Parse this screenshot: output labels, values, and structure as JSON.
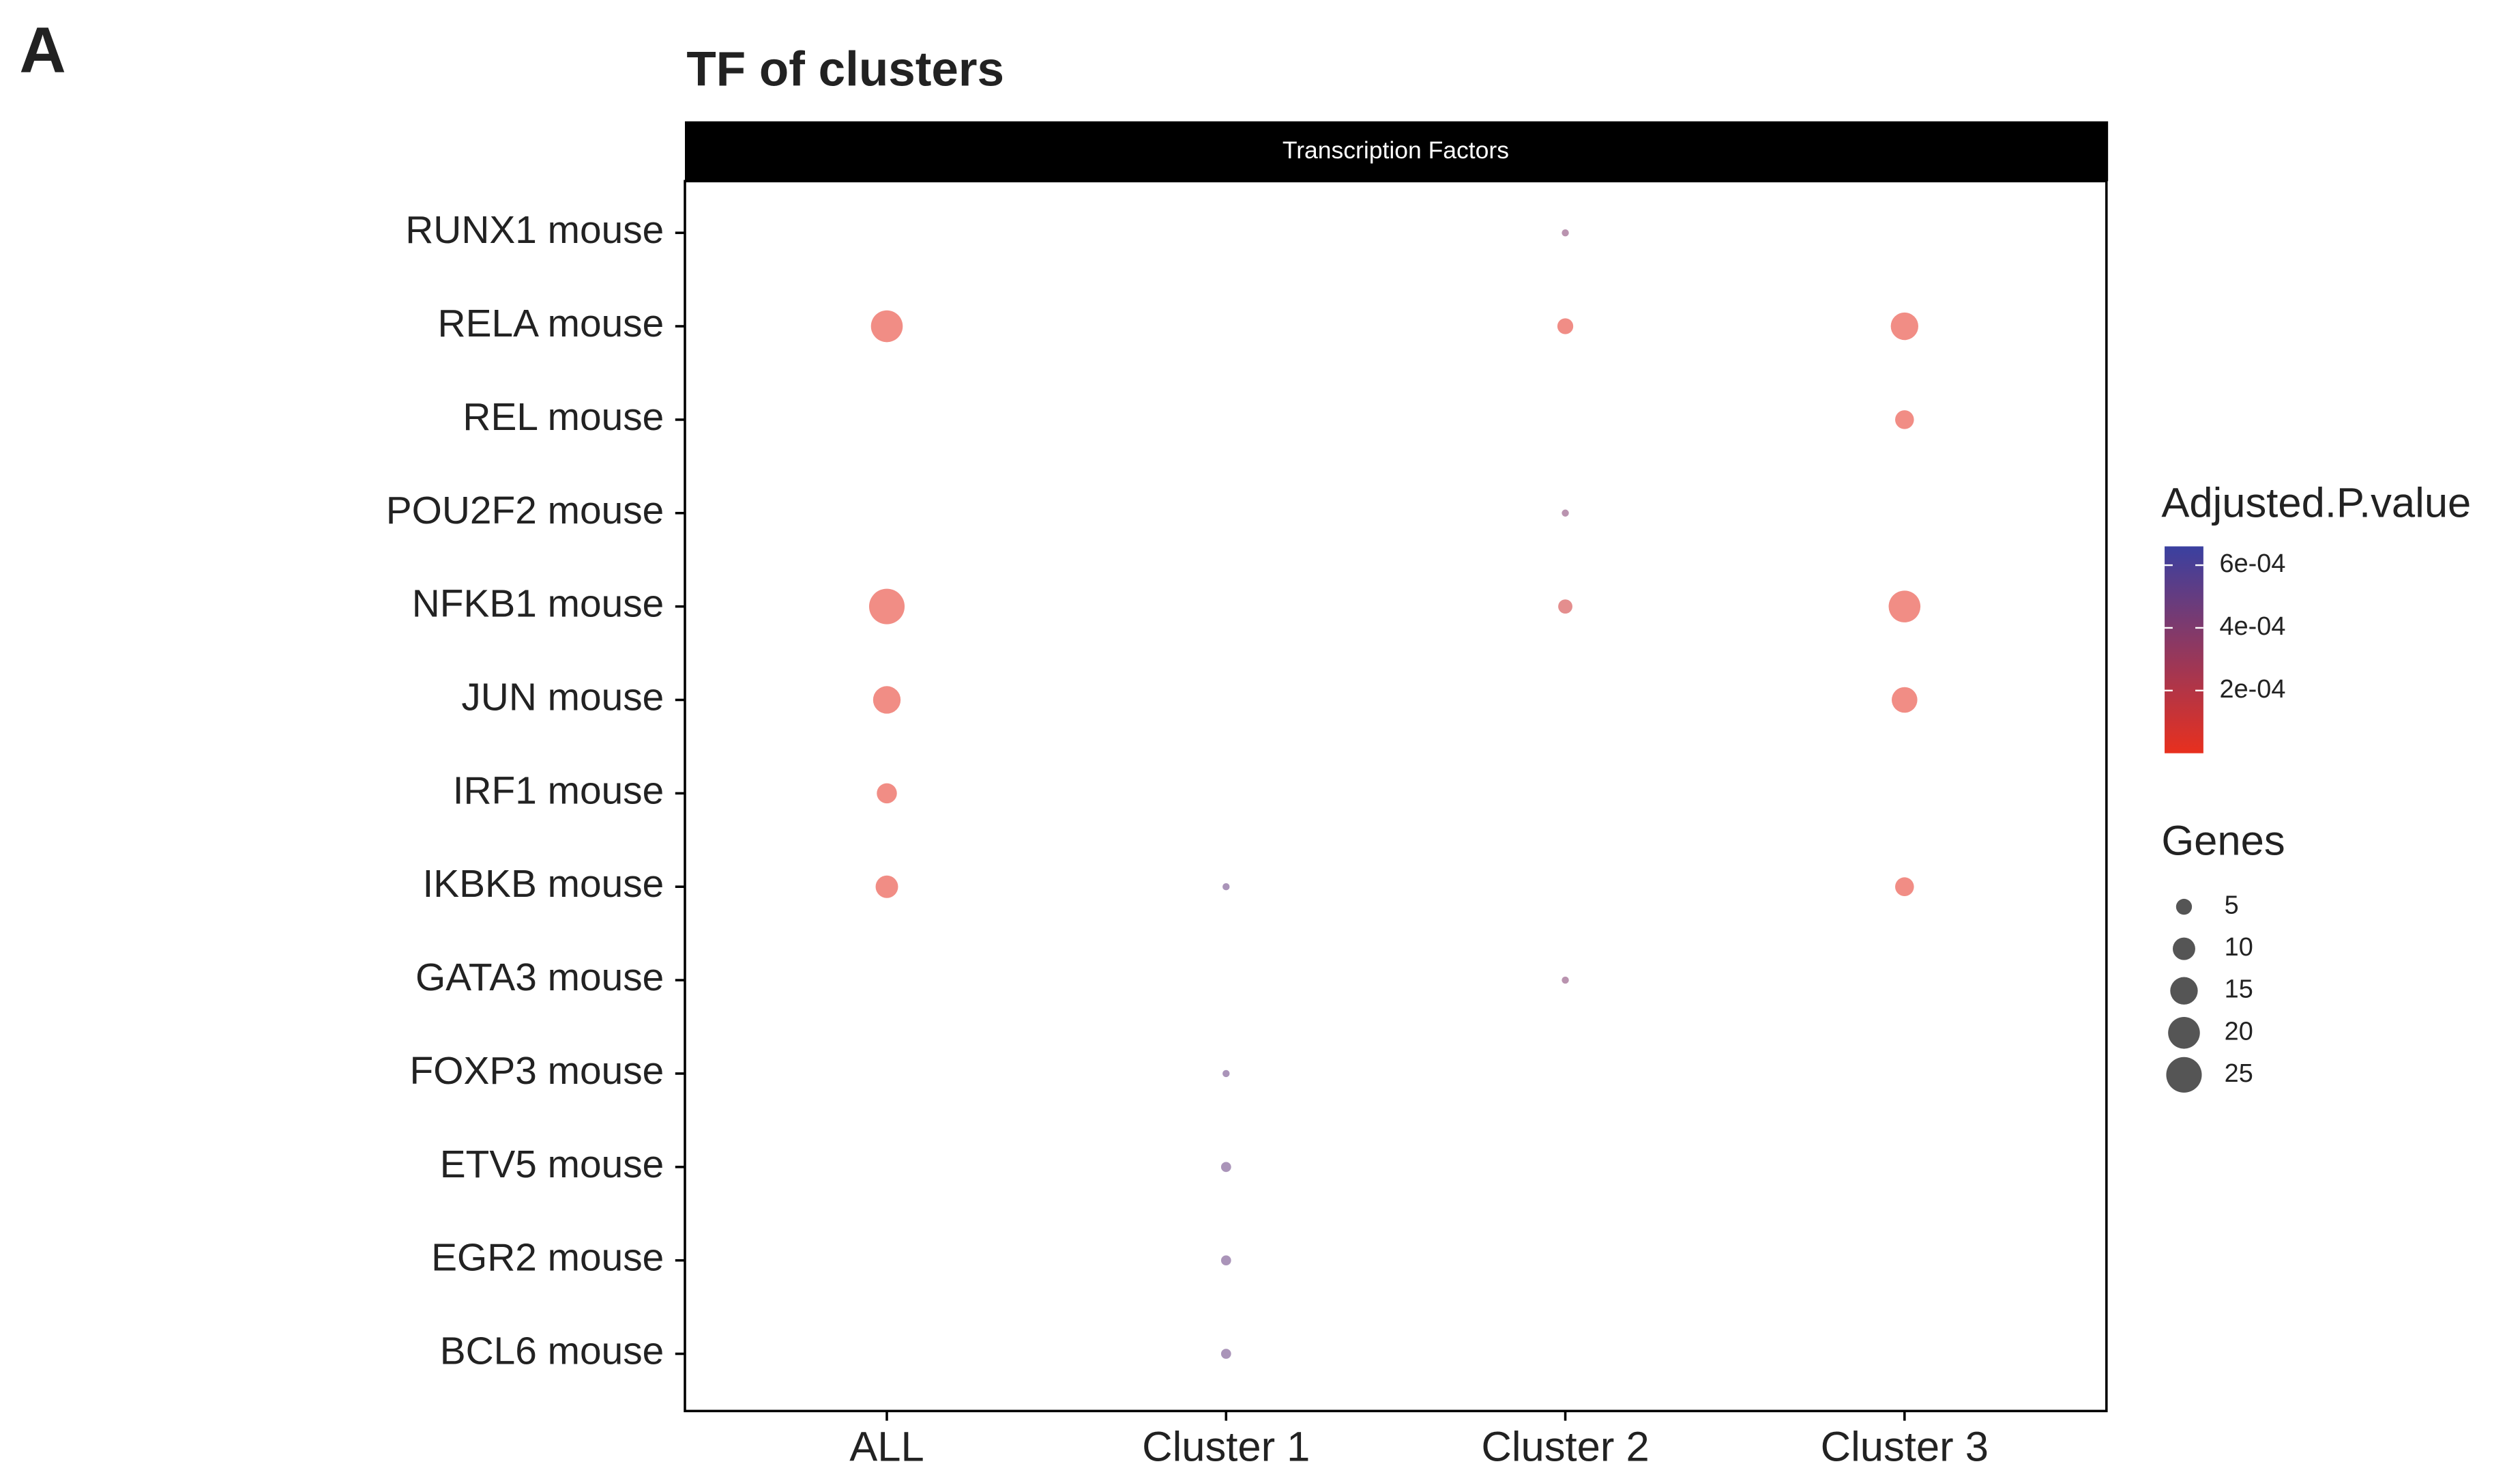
{
  "panel_label": "A",
  "chart_data": {
    "type": "dot",
    "title": "TF of clusters",
    "strip": "Transcription Factors",
    "x_categories": [
      "ALL",
      "Cluster 1",
      "Cluster 2",
      "Cluster 3"
    ],
    "y_categories": [
      "RUNX1 mouse",
      "RELA mouse",
      "REL mouse",
      "POU2F2 mouse",
      "NFKB1 mouse",
      "JUN mouse",
      "IRF1 mouse",
      "IKBKB mouse",
      "GATA3 mouse",
      "FOXP3 mouse",
      "ETV5 mouse",
      "EGR2 mouse",
      "BCL6 mouse"
    ],
    "genes": [
      [
        null,
        null,
        1,
        null
      ],
      [
        20,
        null,
        5,
        15
      ],
      [
        null,
        null,
        null,
        7
      ],
      [
        null,
        null,
        1,
        null
      ],
      [
        25,
        null,
        4,
        20
      ],
      [
        15,
        null,
        null,
        13
      ],
      [
        8,
        null,
        null,
        null
      ],
      [
        10,
        1,
        null,
        7
      ],
      [
        null,
        null,
        1,
        null
      ],
      [
        null,
        1,
        null,
        null
      ],
      [
        null,
        2,
        null,
        null
      ],
      [
        null,
        2,
        null,
        null
      ],
      [
        null,
        2,
        null,
        null
      ]
    ],
    "padj": [
      [
        null,
        null,
        0.0004,
        null
      ],
      [
        1e-05,
        null,
        2e-05,
        1e-05
      ],
      [
        null,
        null,
        null,
        1e-05
      ],
      [
        null,
        null,
        0.0004,
        null
      ],
      [
        1e-05,
        null,
        0.0001,
        1e-05
      ],
      [
        1e-05,
        null,
        null,
        1e-05
      ],
      [
        1e-05,
        null,
        null,
        null
      ],
      [
        1e-05,
        0.0005,
        null,
        1e-05
      ],
      [
        null,
        null,
        0.0004,
        null
      ],
      [
        null,
        0.0005,
        null,
        null
      ],
      [
        null,
        0.0005,
        null,
        null
      ],
      [
        null,
        0.0005,
        null,
        null
      ],
      [
        null,
        0.0005,
        null,
        null
      ]
    ],
    "color_legend_title": "Adjusted.P.value",
    "clim": [
      0,
      0.00066
    ],
    "cticks": [
      {
        "value": 0.0002,
        "label": "2e-04"
      },
      {
        "value": 0.0004,
        "label": "4e-04"
      },
      {
        "value": 0.0006,
        "label": "6e-04"
      }
    ],
    "color_low": "#e8301e",
    "color_high": "#3a40a0",
    "size_legend_title": "Genes",
    "size_ticks": [
      5,
      10,
      15,
      20,
      25
    ]
  }
}
